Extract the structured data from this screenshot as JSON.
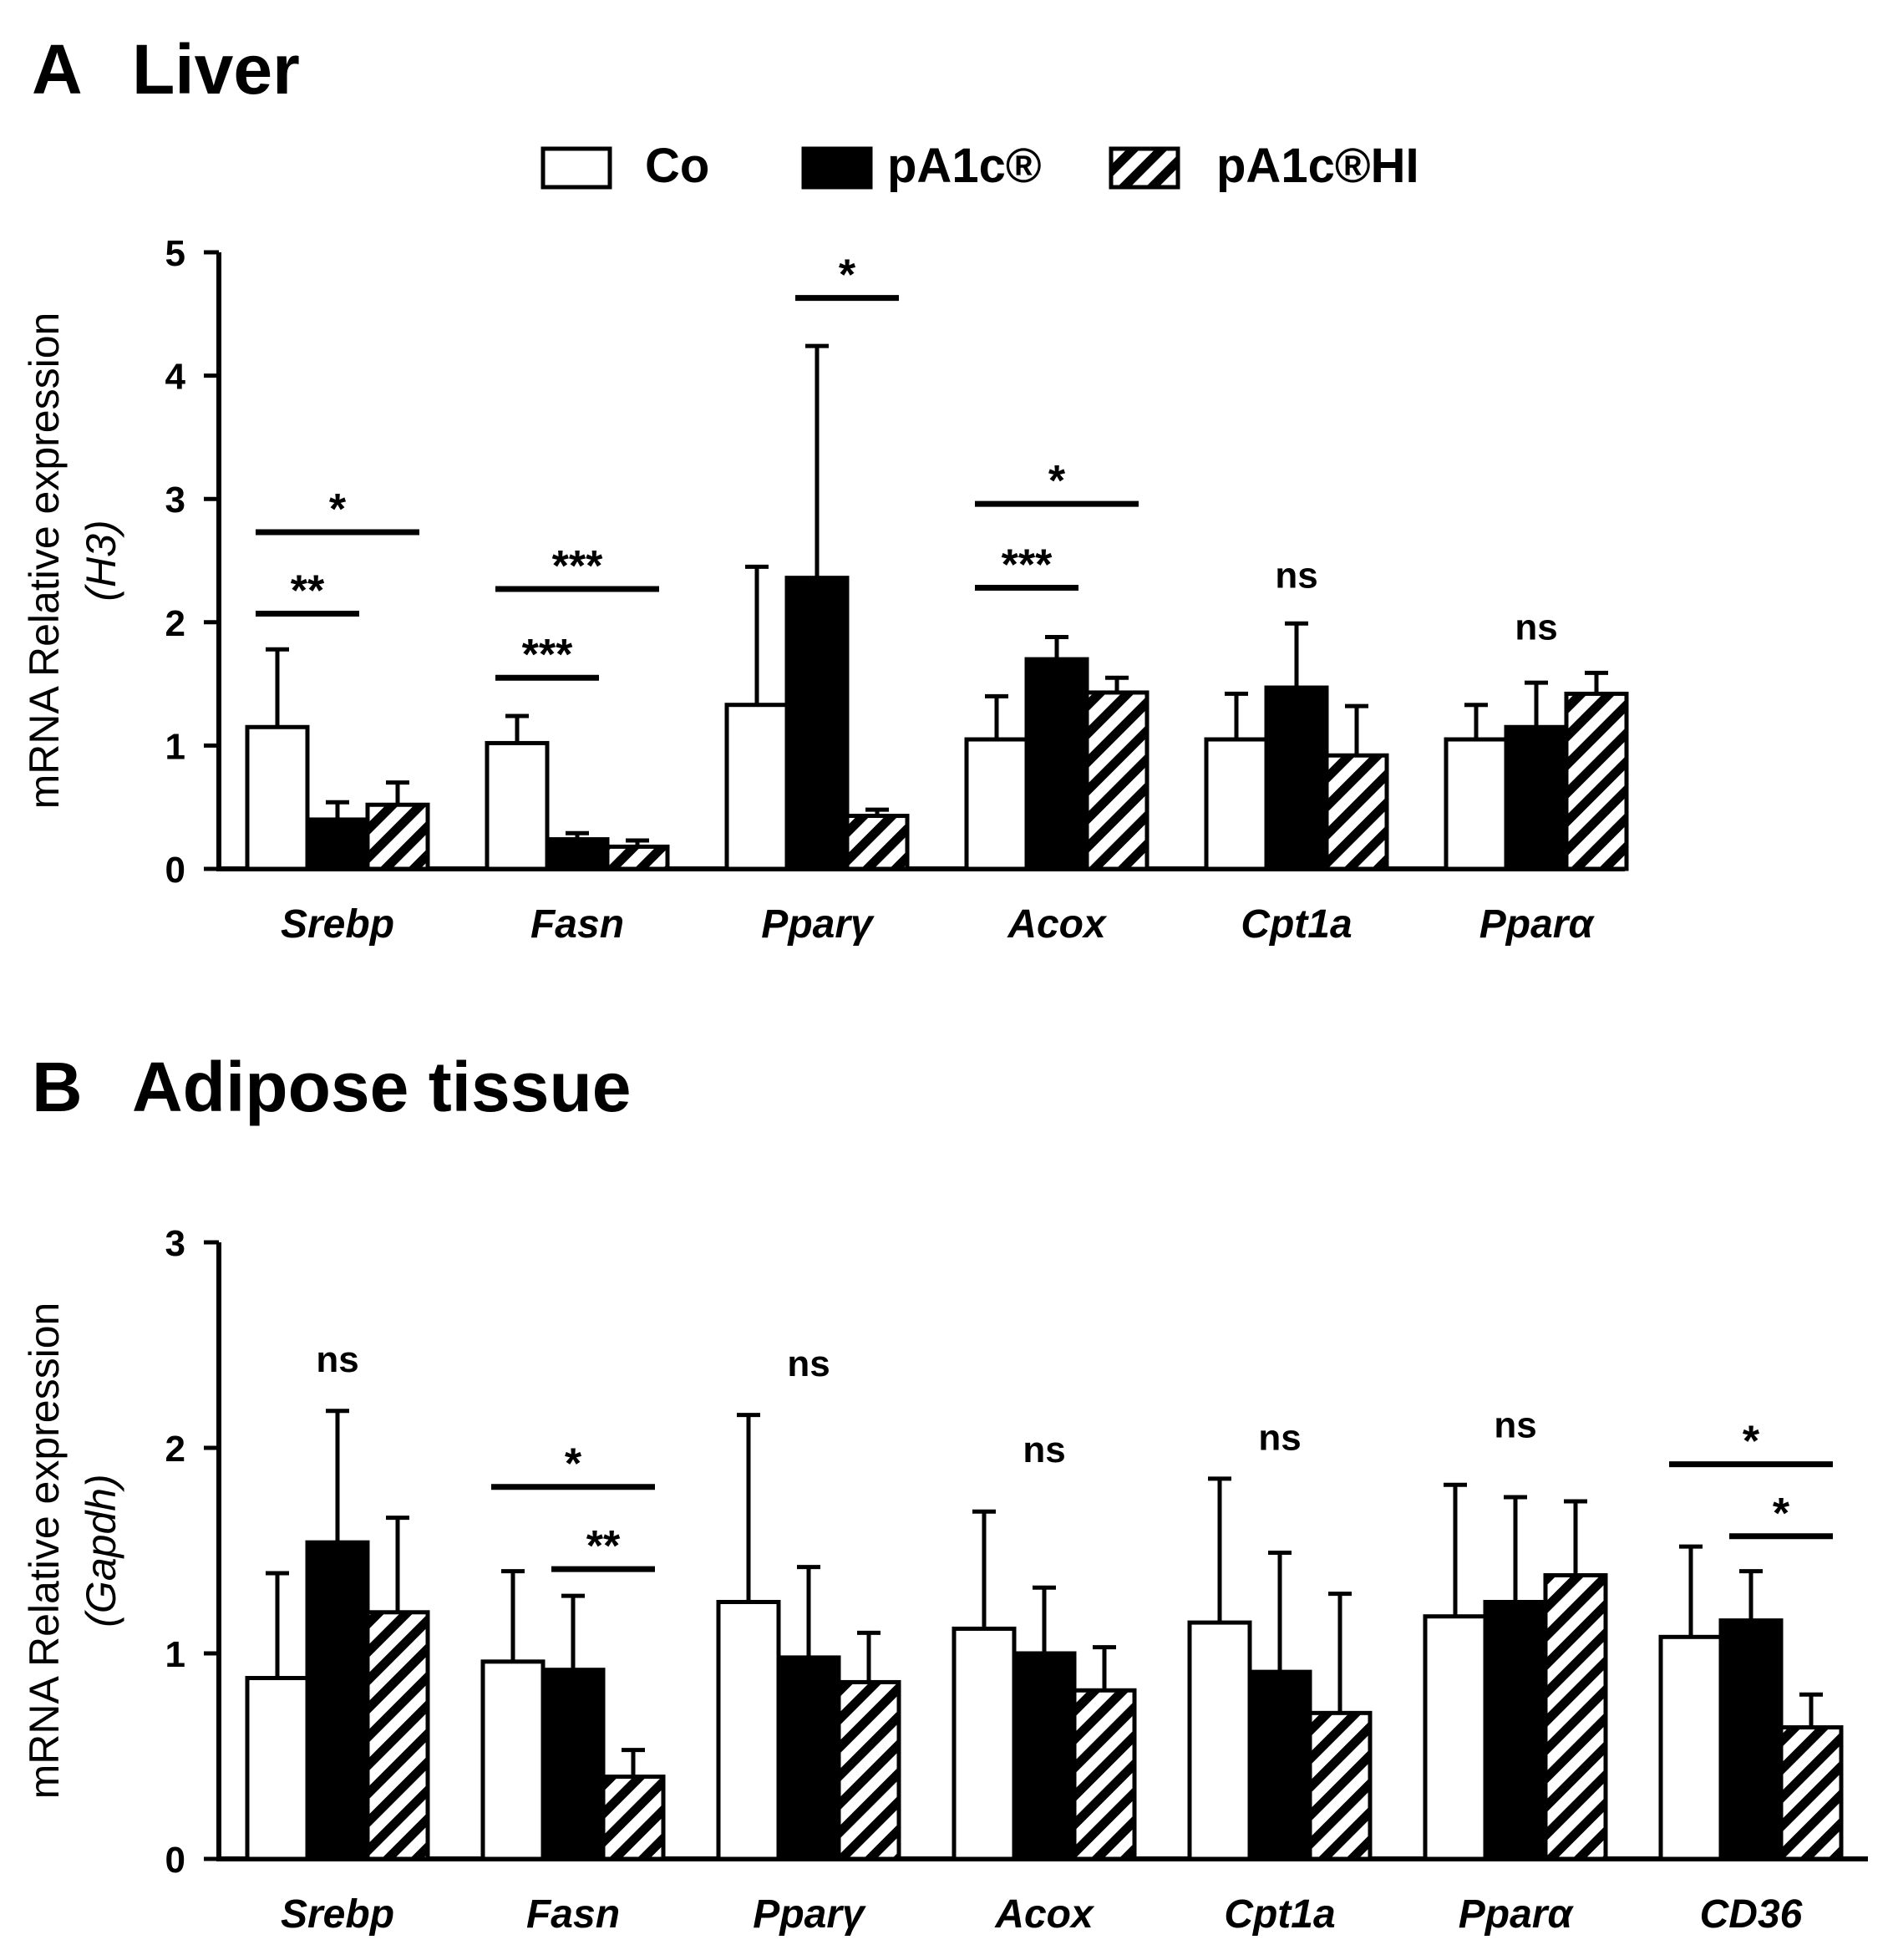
{
  "legend": [
    {
      "label": "Co",
      "style": "open"
    },
    {
      "label": "pA1c®",
      "style": "filled"
    },
    {
      "label": "pA1c®HI",
      "style": "hatched"
    }
  ],
  "colors": {
    "ink": "#000000",
    "paper": "#ffffff"
  },
  "chart_data": [
    {
      "type": "bar",
      "panel": "A",
      "title": "Liver",
      "ylabel_main": "mRNA Relative expression",
      "ylabel_ref": "H3",
      "ylim": [
        0,
        5
      ],
      "yticks": [
        "0",
        "1",
        "2",
        "3",
        "4",
        "5"
      ],
      "categories": [
        "Srebp",
        "Fasn",
        "Pparγ",
        "Acox",
        "Cpt1a",
        "Pparα"
      ],
      "series": [
        {
          "name": "Co",
          "values": [
            1.15,
            1.02,
            1.33,
            1.05,
            1.05,
            1.05
          ],
          "errors": [
            0.63,
            0.22,
            1.12,
            0.35,
            0.37,
            0.28
          ]
        },
        {
          "name": "pA1c®",
          "values": [
            0.4,
            0.24,
            2.36,
            1.7,
            1.47,
            1.15
          ],
          "errors": [
            0.14,
            0.05,
            1.88,
            0.18,
            0.52,
            0.36
          ]
        },
        {
          "name": "pA1c®HI",
          "values": [
            0.52,
            0.18,
            0.43,
            1.43,
            0.92,
            1.42
          ],
          "errors": [
            0.18,
            0.05,
            0.05,
            0.12,
            0.4,
            0.17
          ]
        }
      ],
      "annotations": [
        {
          "cat": 0,
          "from": 0,
          "to": 2,
          "y": 2.73,
          "text": "*"
        },
        {
          "cat": 0,
          "from": 0,
          "to": 1,
          "y": 2.07,
          "text": "**"
        },
        {
          "cat": 1,
          "from": 0,
          "to": 2,
          "y": 2.27,
          "text": "***"
        },
        {
          "cat": 1,
          "from": 0,
          "to": 1,
          "y": 1.55,
          "text": "***"
        },
        {
          "cat": 2,
          "from": 1,
          "to": 2,
          "y": 4.63,
          "text": "*"
        },
        {
          "cat": 3,
          "from": 0,
          "to": 2,
          "y": 2.96,
          "text": "*"
        },
        {
          "cat": 3,
          "from": 0,
          "to": 1,
          "y": 2.28,
          "text": "***"
        },
        {
          "cat": 4,
          "text": "ns",
          "y": 2.28
        },
        {
          "cat": 5,
          "text": "ns",
          "y": 1.86
        }
      ]
    },
    {
      "type": "bar",
      "panel": "B",
      "title": "Adipose tissue",
      "ylabel_main": "mRNA Relative expression",
      "ylabel_ref": "Gapdh",
      "ylim": [
        0,
        3
      ],
      "yticks": [
        "0",
        "1",
        "2",
        "3"
      ],
      "categories": [
        "Srebp",
        "Fasn",
        "Pparγ",
        "Acox",
        "Cpt1a",
        "Pparα",
        "CD36"
      ],
      "series": [
        {
          "name": "Co",
          "values": [
            0.88,
            0.96,
            1.25,
            1.12,
            1.15,
            1.18,
            1.08
          ],
          "errors": [
            0.51,
            0.44,
            0.91,
            0.57,
            0.7,
            0.64,
            0.44
          ]
        },
        {
          "name": "pA1c®",
          "values": [
            1.54,
            0.92,
            0.98,
            1.0,
            0.91,
            1.25,
            1.16
          ],
          "errors": [
            0.64,
            0.36,
            0.44,
            0.32,
            0.58,
            0.51,
            0.24
          ]
        },
        {
          "name": "pA1c®HI",
          "values": [
            1.2,
            0.4,
            0.86,
            0.82,
            0.71,
            1.38,
            0.64
          ],
          "errors": [
            0.46,
            0.13,
            0.24,
            0.21,
            0.58,
            0.36,
            0.16
          ]
        }
      ],
      "annotations": [
        {
          "cat": 0,
          "text": "ns",
          "y": 2.37
        },
        {
          "cat": 1,
          "from": 0,
          "to": 2,
          "y": 1.81,
          "text": "*"
        },
        {
          "cat": 1,
          "from": 1,
          "to": 2,
          "y": 1.41,
          "text": "**"
        },
        {
          "cat": 2,
          "text": "ns",
          "y": 2.35
        },
        {
          "cat": 3,
          "text": "ns",
          "y": 1.93
        },
        {
          "cat": 4,
          "text": "ns",
          "y": 1.99
        },
        {
          "cat": 5,
          "text": "ns",
          "y": 2.05
        },
        {
          "cat": 6,
          "from": 0,
          "to": 2,
          "y": 1.92,
          "text": "*"
        },
        {
          "cat": 6,
          "from": 1,
          "to": 2,
          "y": 1.57,
          "text": "*"
        }
      ]
    }
  ]
}
